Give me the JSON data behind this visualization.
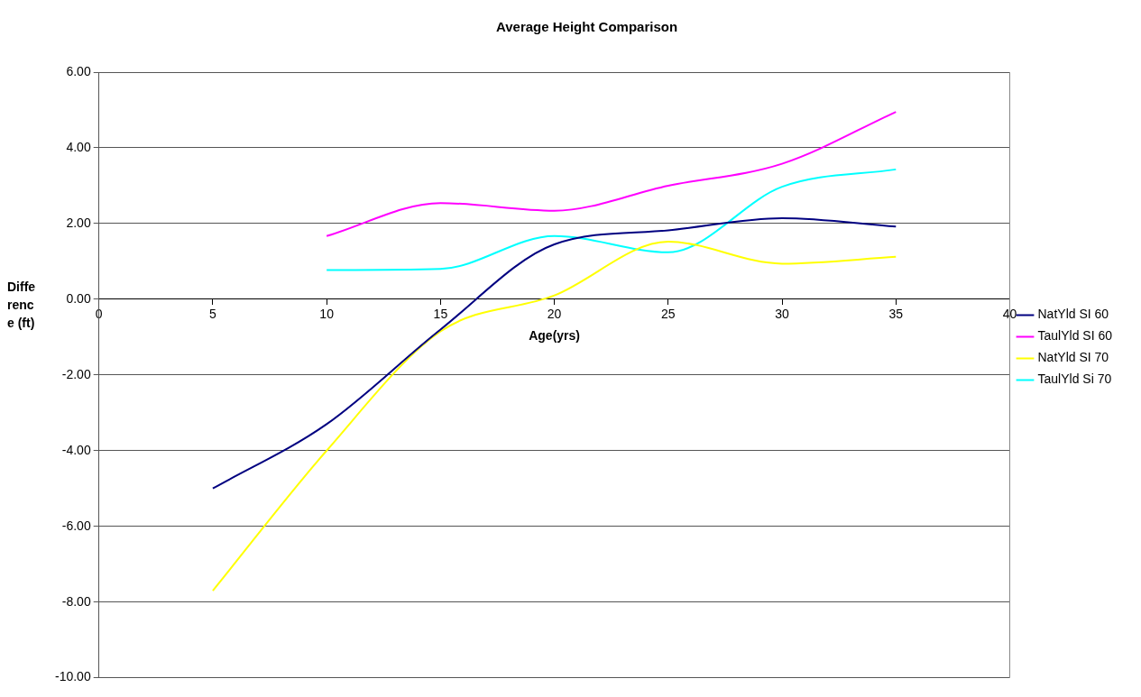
{
  "chart_data": {
    "type": "line",
    "title": "Average Height Comparison",
    "xlabel": "Age(yrs)",
    "ylabel": "Difference (ft)",
    "x": [
      5,
      10,
      15,
      20,
      25,
      30,
      35
    ],
    "series": [
      {
        "name": "NatYld SI 60",
        "color": "#000080",
        "values": [
          -5.0,
          -3.3,
          -0.8,
          1.45,
          1.82,
          2.14,
          1.92
        ]
      },
      {
        "name": "TaulYld SI 60",
        "color": "#ff00ff",
        "values": [
          null,
          1.67,
          2.54,
          2.34,
          3.0,
          3.58,
          4.95
        ]
      },
      {
        "name": "NatYld SI 70",
        "color": "#ffff00",
        "values": [
          -7.7,
          -4.0,
          -0.85,
          0.1,
          1.52,
          0.94,
          1.12
        ]
      },
      {
        "name": "TaulYld Si 70",
        "color": "#00ffff",
        "values": [
          null,
          0.77,
          0.8,
          1.67,
          1.24,
          2.97,
          3.43
        ]
      }
    ],
    "xlim": [
      0,
      40
    ],
    "xticks": [
      0,
      5,
      10,
      15,
      20,
      25,
      30,
      35,
      40
    ],
    "ylim": [
      -10,
      6
    ],
    "yticks": [
      {
        "value": -10,
        "label": "-10.00"
      },
      {
        "value": -8,
        "label": "-8.00"
      },
      {
        "value": -6,
        "label": "-6.00"
      },
      {
        "value": -4,
        "label": "-4.00"
      },
      {
        "value": -2,
        "label": "-2.00"
      },
      {
        "value": 0,
        "label": "0.00"
      },
      {
        "value": 2,
        "label": "2.00"
      },
      {
        "value": 4,
        "label": "4.00"
      },
      {
        "value": 6,
        "label": "6.00"
      }
    ],
    "grid": "y",
    "legend": "right",
    "marker": "none",
    "line_style": "solid"
  }
}
